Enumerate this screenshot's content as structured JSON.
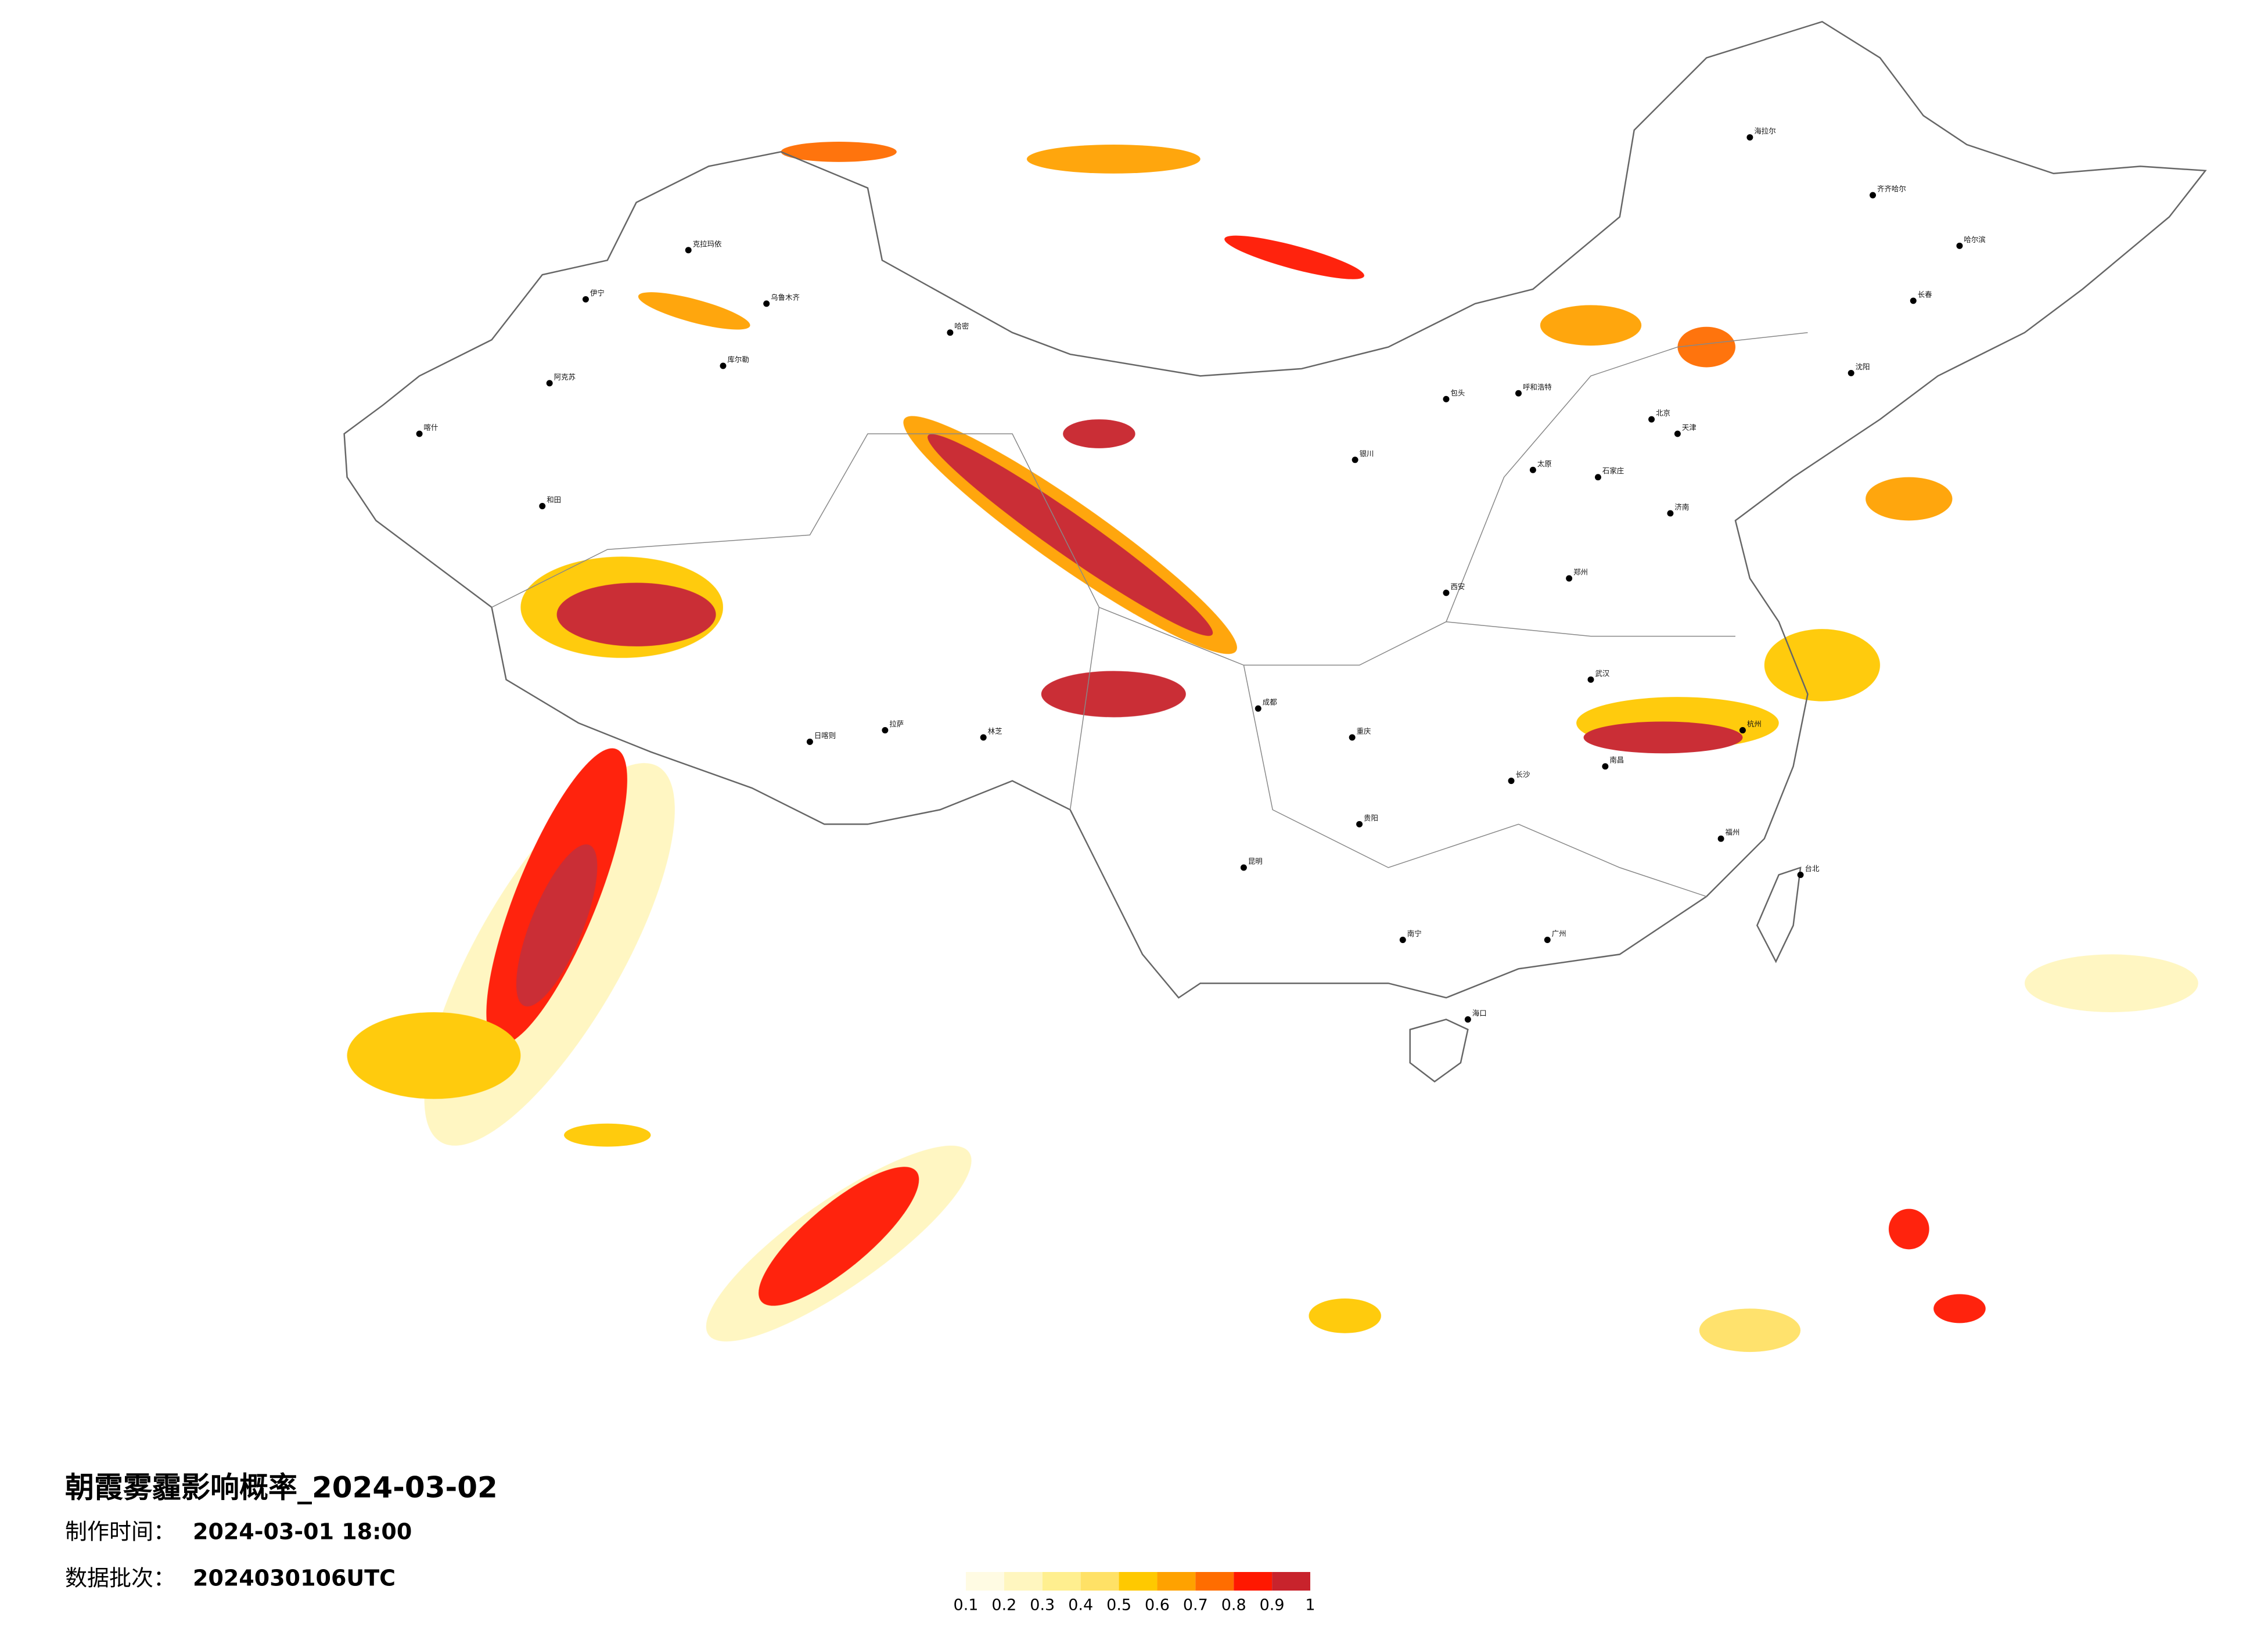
{
  "title": "朝霞雾霾影响概率_2024-03-02",
  "production_label": "制作时间：",
  "production_time": "2024-03-01 18:00",
  "batch_label": "数据批次：",
  "batch": "2024030106UTC",
  "legend": {
    "colors": [
      "#fffbe3",
      "#fff6bf",
      "#ffef8f",
      "#ffe166",
      "#ffc900",
      "#ffa200",
      "#ff6d00",
      "#ff1800",
      "#c8232c"
    ],
    "ticks": [
      0.1,
      0.2,
      0.3,
      0.4,
      0.5,
      0.6,
      0.7,
      0.8,
      0.9,
      1
    ]
  },
  "cities": [
    "克拉玛依",
    "乌鲁木齐",
    "伊宁",
    "库尔勒",
    "阿克苏",
    "喀什",
    "和田",
    "哈密",
    "日喀则",
    "拉萨",
    "林芝",
    "海拉尔",
    "齐齐哈尔",
    "哈尔滨",
    "长春",
    "沈阳",
    "呼和浩特",
    "包头",
    "银川",
    "太原",
    "石家庄",
    "北京",
    "天津",
    "济南",
    "郑州",
    "西安",
    "成都",
    "重庆",
    "贵阳",
    "昆明",
    "南宁",
    "广州",
    "长沙",
    "南昌",
    "武汉",
    "杭州",
    "福州",
    "台北",
    "海口"
  ]
}
